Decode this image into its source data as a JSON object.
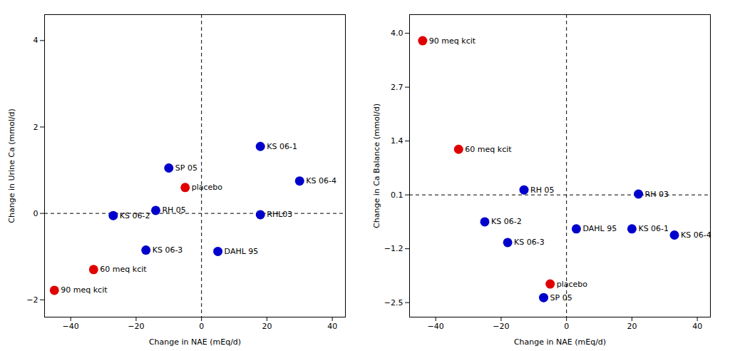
{
  "chart_data": [
    {
      "type": "scatter",
      "xlabel": "Change in NAE (mEq/d)",
      "ylabel": "Change in Urine Ca (mmol/d)",
      "xlim": [
        -48,
        44
      ],
      "ylim": [
        -2.4,
        4.6
      ],
      "xticks": [
        -40,
        -20,
        0,
        20,
        40
      ],
      "yticks": [
        -2,
        0,
        2,
        4
      ],
      "hline": 0,
      "vline": 0,
      "grid": false,
      "x": [
        -45,
        -33,
        -5,
        -27,
        -14,
        -10,
        -17,
        18,
        18,
        30,
        5
      ],
      "values": [
        -1.78,
        -1.3,
        0.6,
        -0.05,
        0.07,
        1.05,
        -0.85,
        1.55,
        -0.03,
        0.75,
        -0.88
      ],
      "labels": [
        "90 meq kcit",
        "60 meq kcit",
        "placebo",
        "KS 06-2",
        "RH 05",
        "SP 05",
        "KS 06-3",
        "KS 06-1",
        "RHL03",
        "KS 06-4",
        "DAHL 95"
      ],
      "colors": [
        "#e00000",
        "#e00000",
        "#e00000",
        "#0000cc",
        "#0000cc",
        "#0000cc",
        "#0000cc",
        "#0000cc",
        "#0000cc",
        "#0000cc",
        "#0000cc"
      ]
    },
    {
      "type": "scatter",
      "xlabel": "Change in NAE (mEq/d)",
      "ylabel": "Change in Ca Balance (mmol/d)",
      "xlim": [
        -48,
        44
      ],
      "ylim": [
        -2.85,
        4.45
      ],
      "xticks": [
        -40,
        -20,
        0,
        20,
        40
      ],
      "yticks": [
        -2.5,
        -1.2,
        0.1,
        1.4,
        2.7,
        {
          "value": 4,
          "label": "4.0"
        }
      ],
      "hline": 0.1,
      "vline": 0,
      "grid": false,
      "x": [
        -44,
        -33,
        -5,
        -25,
        -13,
        -7,
        -18,
        20,
        22,
        33,
        3
      ],
      "values": [
        3.82,
        1.2,
        -2.05,
        -0.55,
        0.22,
        -2.38,
        -1.05,
        -0.72,
        0.12,
        -0.87,
        -0.72
      ],
      "labels": [
        "90 meq kcit",
        "60 meq kcit",
        "placebo",
        "KS 06-2",
        "RH 05",
        "SP 05",
        "KS 06-3",
        "KS 06-1",
        "RH 03",
        "KS 06-4",
        "DAHL 95"
      ],
      "colors": [
        "#e00000",
        "#e00000",
        "#e00000",
        "#0000cc",
        "#0000cc",
        "#0000cc",
        "#0000cc",
        "#0000cc",
        "#0000cc",
        "#0000cc",
        "#0000cc"
      ]
    }
  ]
}
